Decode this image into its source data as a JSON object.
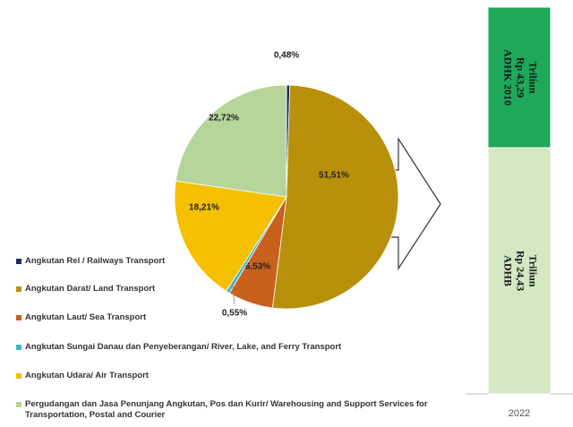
{
  "chart_data": {
    "type": "pie",
    "categories": [
      "Angkutan Rel / Railways Transport",
      "Angkutan Darat/ Land Transport",
      "Angkutan Laut/ Sea Transport",
      "Angkutan Sungai Danau dan Penyeberangan/ River, Lake, and Ferry Transport",
      "Angkutan Udara/ Air Transport",
      "Pergudangan dan Jasa Penunjang Angkutan, Pos dan Kurir/ Warehousing and Support Services for Transportation, Postal and Courier"
    ],
    "values": [
      0.48,
      51.51,
      6.53,
      0.55,
      18.21,
      22.72
    ],
    "value_labels": [
      "0,48%",
      "51,51%",
      "6,53%",
      "0,55%",
      "18,21%",
      "22,72%"
    ],
    "colors": [
      "#1f2d5c",
      "#b8900a",
      "#c8601e",
      "#3fb6c8",
      "#f5c000",
      "#b5d59a"
    ]
  },
  "side_panel": {
    "segments": [
      {
        "lines": [
          "ADHK 2010",
          "Rp 43,29",
          "Triliun"
        ],
        "color": "#1fa75a"
      },
      {
        "lines": [
          "ADHB",
          "Rp 24,43",
          "Triliun"
        ],
        "color": "#d3e8c3"
      }
    ],
    "category": "2022"
  }
}
